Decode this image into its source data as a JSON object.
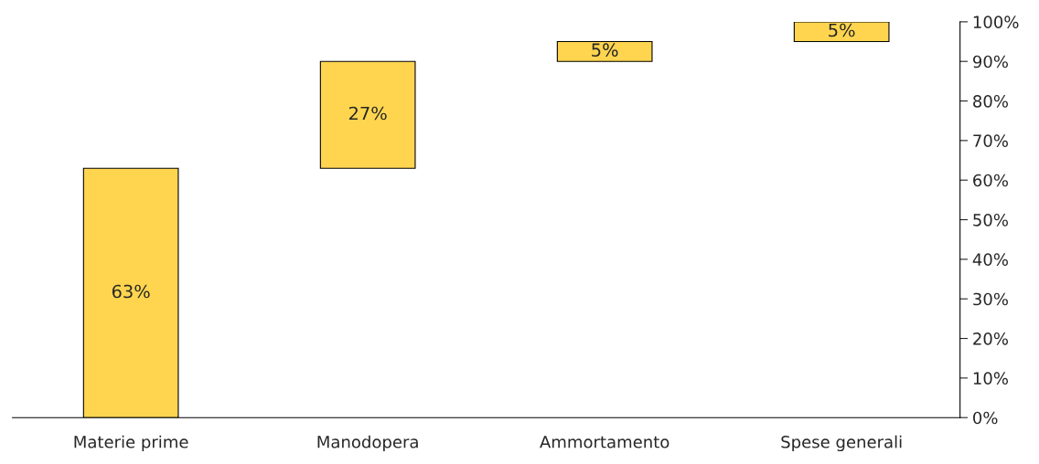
{
  "chart_data": {
    "type": "bar",
    "categories": [
      "Materie prime",
      "Manodopera",
      "Ammortamento",
      "Spese generali"
    ],
    "values": [
      63,
      27,
      5,
      5
    ],
    "base": [
      0,
      63,
      90,
      95
    ],
    "color": "#ffd54f",
    "value_labels": [
      "63%",
      "27%",
      "5%",
      "5%"
    ],
    "ylim": [
      0,
      100
    ],
    "yticks": [
      {
        "value": 0,
        "label": "0%"
      },
      {
        "value": 10,
        "label": "10%"
      },
      {
        "value": 20,
        "label": "20%"
      },
      {
        "value": 30,
        "label": "30%"
      },
      {
        "value": 40,
        "label": "40%"
      },
      {
        "value": 50,
        "label": "50%"
      },
      {
        "value": 60,
        "label": "60%"
      },
      {
        "value": 70,
        "label": "70%"
      },
      {
        "value": 80,
        "label": "80%"
      },
      {
        "value": 90,
        "label": "90%"
      },
      {
        "value": 100,
        "label": "100%"
      }
    ],
    "grid": false,
    "legend": false
  }
}
